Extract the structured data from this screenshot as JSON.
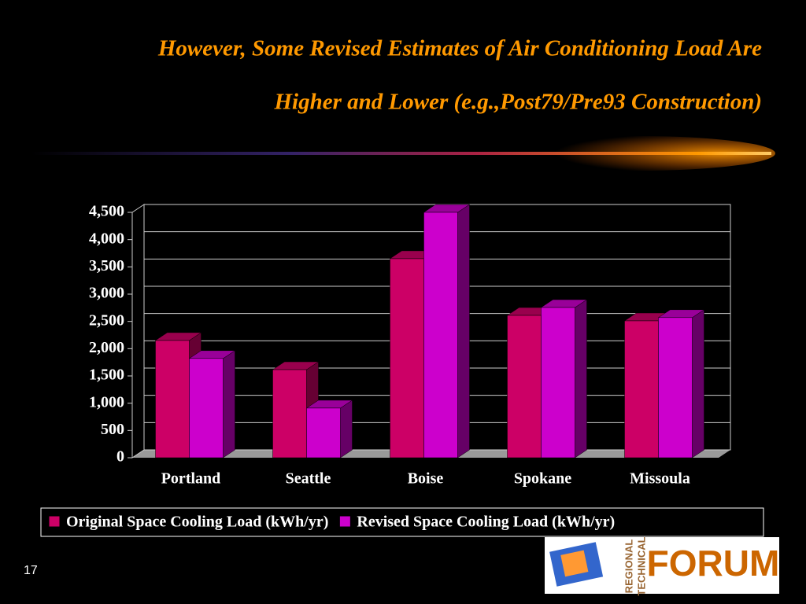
{
  "chart_data": {
    "type": "bar3d",
    "title": [
      "However, Some Revised Estimates of Air Conditioning Load Are",
      "Higher and Lower (e.g.,Post79/Pre93 Construction)"
    ],
    "categories": [
      "Portland",
      "Seattle",
      "Boise",
      "Spokane",
      "Missoula"
    ],
    "series": [
      {
        "name": "Original Space Cooling Load (kWh/yr)",
        "color": "#cc0066",
        "values": [
          2150,
          1615,
          3650,
          2610,
          2510
        ]
      },
      {
        "name": "Revised Space Cooling Load (kWh/yr)",
        "color": "#cc00cc",
        "values": [
          1820,
          910,
          4500,
          2755,
          2570
        ]
      }
    ],
    "ylim": [
      0,
      4500
    ],
    "yticks": [
      0,
      500,
      {
        "value": 1000,
        "label": "1,000"
      },
      {
        "value": 1500,
        "label": "1,500"
      },
      {
        "value": 2000,
        "label": "2,000"
      },
      {
        "value": 2500,
        "label": "2,500"
      },
      {
        "value": 3000,
        "label": "3,000"
      },
      {
        "value": 3500,
        "label": "3,500"
      },
      {
        "value": 4000,
        "label": "4,000"
      },
      {
        "value": 4500,
        "label": "4,500"
      }
    ],
    "grid": true
  },
  "slide_number": "17",
  "logo": {
    "line1": "REGIONAL",
    "line2": "TECHNICAL",
    "word": "FORUM"
  }
}
